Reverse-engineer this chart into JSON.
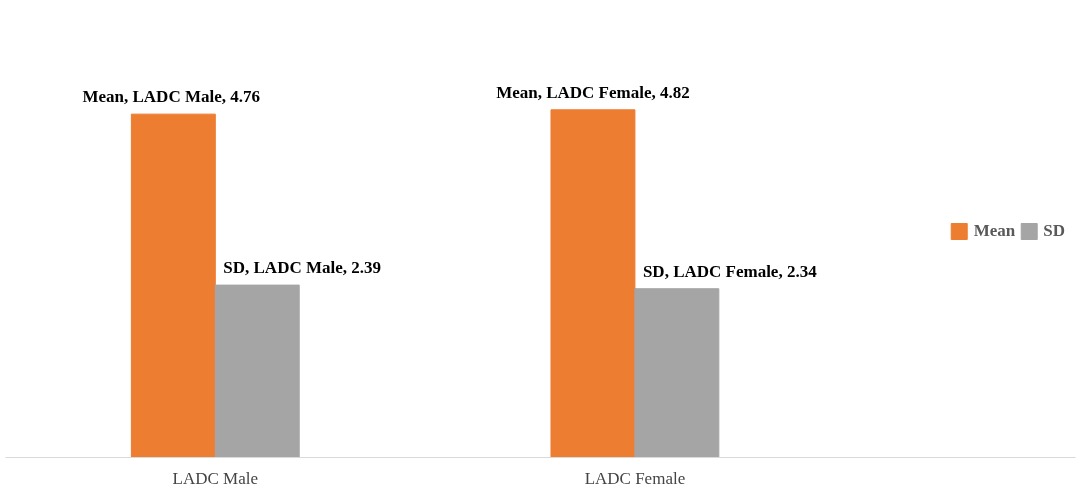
{
  "chart_data": {
    "type": "bar",
    "categories": [
      "LADC Male",
      "LADC Female"
    ],
    "series": [
      {
        "name": "Mean",
        "color": "#ed7d31",
        "values": [
          4.76,
          4.82
        ],
        "value_labels": [
          "Mean, LADC Male,  4.76",
          "Mean, LADC Female, 4.82"
        ]
      },
      {
        "name": "SD",
        "color": "#a5a5a5",
        "values": [
          2.39,
          2.34
        ],
        "value_labels": [
          "SD, LADC Male, 2.39",
          "SD, LADC Female, 2.34"
        ]
      }
    ],
    "legend": "right"
  }
}
